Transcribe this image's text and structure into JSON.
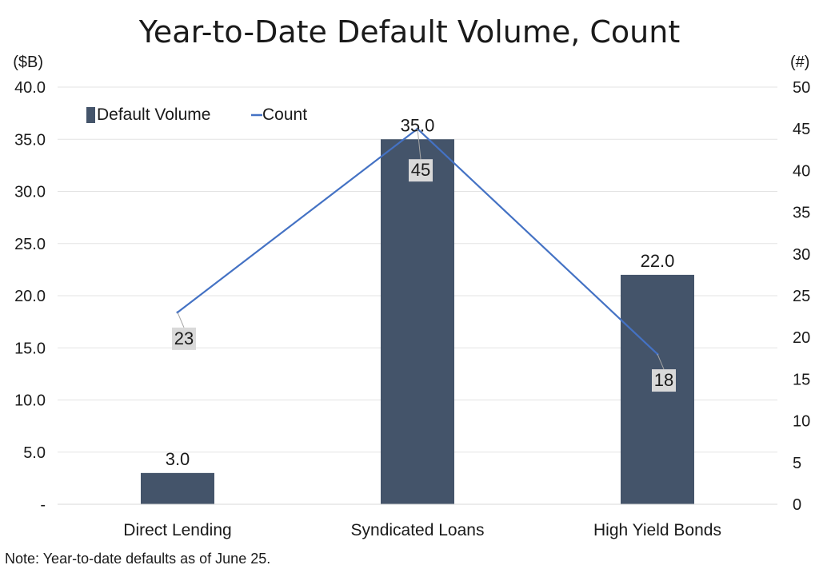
{
  "chart_data": {
    "type": "bar+line",
    "title": "Year-to-Date Default Volume, Count",
    "categories": [
      "Direct Lending",
      "Syndicated Loans",
      "High Yield Bonds"
    ],
    "series": [
      {
        "name": "Default Volume",
        "type": "bar",
        "axis": "left",
        "values": [
          3.0,
          35.0,
          22.0
        ],
        "labels": [
          "3.0",
          "35.0",
          "22.0"
        ],
        "color": "#44546a"
      },
      {
        "name": "Count",
        "type": "line",
        "axis": "right",
        "values": [
          23,
          45,
          18
        ],
        "labels": [
          "23",
          "45",
          "18"
        ],
        "color": "#4472c4"
      }
    ],
    "y_left": {
      "unit_label": "($B)",
      "ylim": [
        0,
        40
      ],
      "ticks": [
        0,
        5,
        10,
        15,
        20,
        25,
        30,
        35,
        40
      ],
      "tick_labels": [
        "-",
        "5.0",
        "10.0",
        "15.0",
        "20.0",
        "25.0",
        "30.0",
        "35.0",
        "40.0"
      ]
    },
    "y_right": {
      "unit_label": "(#)",
      "ylim": [
        0,
        50
      ],
      "ticks": [
        0,
        5,
        10,
        15,
        20,
        25,
        30,
        35,
        40,
        45,
        50
      ],
      "tick_labels": [
        "0",
        "5",
        "10",
        "15",
        "20",
        "25",
        "30",
        "35",
        "40",
        "45",
        "50"
      ]
    },
    "grid": true,
    "legend_position": "top-left",
    "note": "Note: Year-to-date defaults as of June 25."
  }
}
